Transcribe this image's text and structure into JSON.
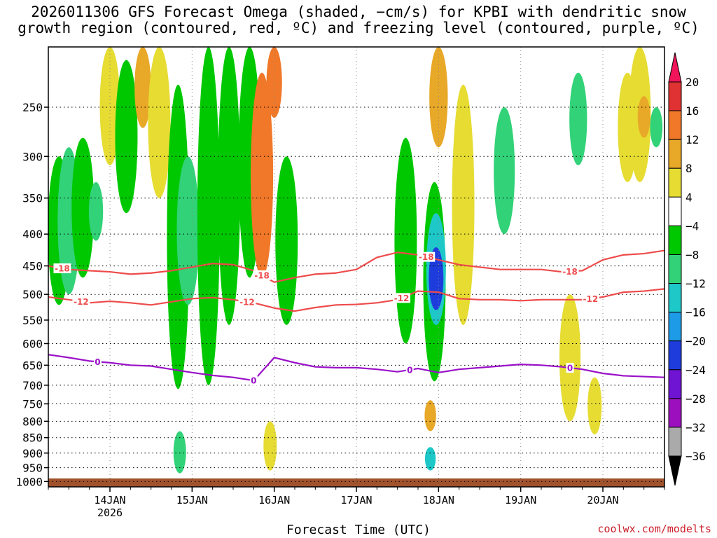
{
  "title": {
    "line1": "2026011306 GFS Forecast Omega (shaded, −cm/s) for KPBI with dendritic snow",
    "line2": "growth region (contoured, red, ºC) and freezing level (contoured, purple, ºC)"
  },
  "x_title": "Forecast Time (UTC)",
  "credit": "coolwx.com/modelts",
  "colors": {
    "dsgz_contour": "#ee4b4b",
    "freezing_contour": "#9a10c8",
    "ground": "#a0522d",
    "grid": "#000000"
  },
  "chart_data": {
    "type": "heatmap",
    "y_axis": {
      "unit": "hPa",
      "scale": "log",
      "range": [
        200,
        1020
      ],
      "ticks": [
        250,
        300,
        350,
        400,
        450,
        500,
        550,
        600,
        650,
        700,
        750,
        800,
        850,
        900,
        950,
        1000
      ]
    },
    "x_axis": {
      "range_days": [
        13.25,
        20.75
      ],
      "ticks": [
        {
          "day": 14,
          "label": "14JAN",
          "sublabel": "2026"
        },
        {
          "day": 15,
          "label": "15JAN",
          "sublabel": ""
        },
        {
          "day": 16,
          "label": "16JAN",
          "sublabel": ""
        },
        {
          "day": 17,
          "label": "17JAN",
          "sublabel": ""
        },
        {
          "day": 18,
          "label": "18JAN",
          "sublabel": ""
        },
        {
          "day": 19,
          "label": "19JAN",
          "sublabel": ""
        },
        {
          "day": 20,
          "label": "20JAN",
          "sublabel": ""
        }
      ]
    },
    "colorbar": {
      "labels": [
        "20",
        "16",
        "12",
        "8",
        "4",
        "−4",
        "−8",
        "−12",
        "−16",
        "−20",
        "−24",
        "−28",
        "−32",
        "−36"
      ],
      "colors": [
        "#f0145a",
        "#e03232",
        "#f07828",
        "#e8a828",
        "#e6dc32",
        "#ffffff",
        "#00c800",
        "#32d278",
        "#1ec8c8",
        "#1e9be6",
        "#1e3cdc",
        "#6e14d2",
        "#9b0fbe",
        "#aaaaaa",
        "#000000"
      ]
    },
    "omega_cells": [
      {
        "day": 13.38,
        "p_top": 300,
        "p_bot": 520,
        "value": -6
      },
      {
        "day": 13.5,
        "p_top": 290,
        "p_bot": 500,
        "value": -10
      },
      {
        "day": 13.67,
        "p_top": 280,
        "p_bot": 470,
        "value": -6
      },
      {
        "day": 13.83,
        "p_top": 330,
        "p_bot": 410,
        "value": -8
      },
      {
        "day": 14.0,
        "p_top": 200,
        "p_bot": 310,
        "value": 5
      },
      {
        "day": 14.2,
        "p_top": 210,
        "p_bot": 370,
        "value": -6
      },
      {
        "day": 14.4,
        "p_top": 200,
        "p_bot": 270,
        "value": 10
      },
      {
        "day": 14.6,
        "p_top": 200,
        "p_bot": 350,
        "value": 5
      },
      {
        "day": 14.83,
        "p_top": 230,
        "p_bot": 710,
        "value": -6
      },
      {
        "day": 14.95,
        "p_top": 300,
        "p_bot": 520,
        "value": -10
      },
      {
        "day": 14.85,
        "p_top": 830,
        "p_bot": 970,
        "value": -10
      },
      {
        "day": 15.2,
        "p_top": 200,
        "p_bot": 700,
        "value": -6
      },
      {
        "day": 15.45,
        "p_top": 200,
        "p_bot": 560,
        "value": -6
      },
      {
        "day": 15.7,
        "p_top": 200,
        "p_bot": 470,
        "value": -6
      },
      {
        "day": 15.85,
        "p_top": 220,
        "p_bot": 470,
        "value": 12
      },
      {
        "day": 16.0,
        "p_top": 200,
        "p_bot": 260,
        "value": 14
      },
      {
        "day": 16.15,
        "p_top": 300,
        "p_bot": 560,
        "value": -6
      },
      {
        "day": 15.95,
        "p_top": 800,
        "p_bot": 960,
        "value": 6
      },
      {
        "day": 17.6,
        "p_top": 280,
        "p_bot": 600,
        "value": -6
      },
      {
        "day": 17.95,
        "p_top": 330,
        "p_bot": 690,
        "value": -6
      },
      {
        "day": 17.97,
        "p_top": 370,
        "p_bot": 560,
        "value": -12
      },
      {
        "day": 17.97,
        "p_top": 420,
        "p_bot": 530,
        "value": -20
      },
      {
        "day": 17.9,
        "p_top": 740,
        "p_bot": 830,
        "value": 10
      },
      {
        "day": 17.9,
        "p_top": 880,
        "p_bot": 960,
        "value": -12
      },
      {
        "day": 18.0,
        "p_top": 200,
        "p_bot": 290,
        "value": 10
      },
      {
        "day": 18.3,
        "p_top": 230,
        "p_bot": 560,
        "value": 5
      },
      {
        "day": 18.8,
        "p_top": 250,
        "p_bot": 400,
        "value": -8
      },
      {
        "day": 19.6,
        "p_top": 500,
        "p_bot": 800,
        "value": 5
      },
      {
        "day": 19.7,
        "p_top": 220,
        "p_bot": 310,
        "value": -8
      },
      {
        "day": 20.3,
        "p_top": 220,
        "p_bot": 330,
        "value": 5
      },
      {
        "day": 20.45,
        "p_top": 200,
        "p_bot": 330,
        "value": 5
      },
      {
        "day": 20.5,
        "p_top": 240,
        "p_bot": 280,
        "value": 10
      },
      {
        "day": 20.65,
        "p_top": 250,
        "p_bot": 290,
        "value": -8
      },
      {
        "day": 19.9,
        "p_top": 680,
        "p_bot": 840,
        "value": 5
      }
    ],
    "contours": [
      {
        "label": "-18",
        "color": "#ee4b4b",
        "label_days": [
          13.42,
          15.85,
          17.85,
          19.6
        ],
        "points": [
          [
            13.25,
            450
          ],
          [
            13.5,
            456
          ],
          [
            13.75,
            458
          ],
          [
            14.0,
            460
          ],
          [
            14.25,
            464
          ],
          [
            14.5,
            462
          ],
          [
            14.75,
            458
          ],
          [
            15.0,
            452
          ],
          [
            15.25,
            446
          ],
          [
            15.5,
            448
          ],
          [
            15.75,
            458
          ],
          [
            16.0,
            478
          ],
          [
            16.25,
            470
          ],
          [
            16.5,
            464
          ],
          [
            16.75,
            462
          ],
          [
            17.0,
            456
          ],
          [
            17.25,
            436
          ],
          [
            17.5,
            428
          ],
          [
            17.75,
            432
          ],
          [
            18.0,
            440
          ],
          [
            18.25,
            448
          ],
          [
            18.5,
            452
          ],
          [
            18.75,
            456
          ],
          [
            19.0,
            456
          ],
          [
            19.25,
            456
          ],
          [
            19.5,
            460
          ],
          [
            19.75,
            458
          ],
          [
            20.0,
            440
          ],
          [
            20.25,
            432
          ],
          [
            20.5,
            430
          ],
          [
            20.75,
            425
          ]
        ]
      },
      {
        "label": "-12",
        "color": "#ee4b4b",
        "label_days": [
          13.65,
          15.67,
          17.55,
          19.85
        ],
        "points": [
          [
            13.25,
            505
          ],
          [
            13.5,
            510
          ],
          [
            13.75,
            516
          ],
          [
            14.0,
            513
          ],
          [
            14.25,
            516
          ],
          [
            14.5,
            520
          ],
          [
            14.75,
            514
          ],
          [
            15.0,
            508
          ],
          [
            15.25,
            506
          ],
          [
            15.5,
            510
          ],
          [
            15.75,
            516
          ],
          [
            16.0,
            526
          ],
          [
            16.25,
            532
          ],
          [
            16.5,
            525
          ],
          [
            16.75,
            520
          ],
          [
            17.0,
            519
          ],
          [
            17.25,
            516
          ],
          [
            17.5,
            510
          ],
          [
            17.75,
            494
          ],
          [
            18.0,
            496
          ],
          [
            18.25,
            508
          ],
          [
            18.5,
            510
          ],
          [
            18.75,
            510
          ],
          [
            19.0,
            512
          ],
          [
            19.25,
            510
          ],
          [
            19.5,
            510
          ],
          [
            19.75,
            510
          ],
          [
            20.0,
            505
          ],
          [
            20.25,
            496
          ],
          [
            20.5,
            494
          ],
          [
            20.75,
            490
          ]
        ]
      },
      {
        "label": "0",
        "color": "#9a10c8",
        "label_days": [
          13.85,
          15.75,
          17.65,
          19.6
        ],
        "points": [
          [
            13.25,
            625
          ],
          [
            13.5,
            632
          ],
          [
            13.75,
            640
          ],
          [
            14.0,
            644
          ],
          [
            14.25,
            650
          ],
          [
            14.5,
            652
          ],
          [
            14.75,
            660
          ],
          [
            15.0,
            668
          ],
          [
            15.25,
            675
          ],
          [
            15.5,
            680
          ],
          [
            15.75,
            688
          ],
          [
            16.0,
            632
          ],
          [
            16.25,
            644
          ],
          [
            16.5,
            654
          ],
          [
            16.75,
            656
          ],
          [
            17.0,
            656
          ],
          [
            17.25,
            660
          ],
          [
            17.5,
            666
          ],
          [
            17.75,
            658
          ],
          [
            18.0,
            668
          ],
          [
            18.25,
            660
          ],
          [
            18.5,
            656
          ],
          [
            18.75,
            652
          ],
          [
            19.0,
            648
          ],
          [
            19.25,
            650
          ],
          [
            19.5,
            654
          ],
          [
            19.75,
            660
          ],
          [
            20.0,
            670
          ],
          [
            20.25,
            676
          ],
          [
            20.5,
            678
          ],
          [
            20.75,
            680
          ]
        ]
      }
    ]
  }
}
